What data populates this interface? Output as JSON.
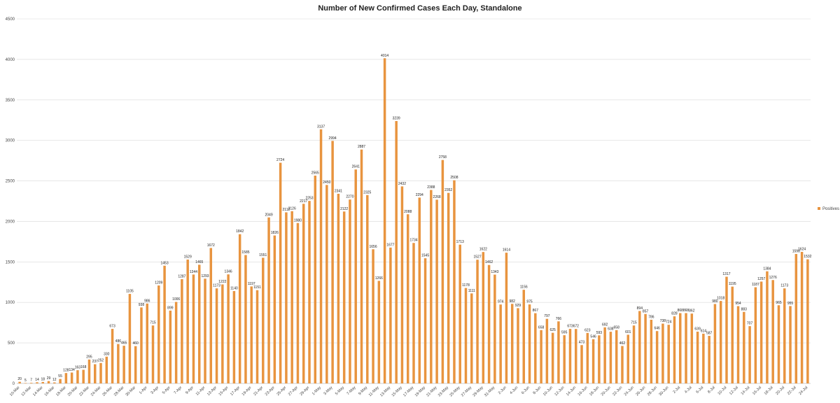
{
  "chart_data": {
    "type": "bar",
    "title": "Number of New Confirmed Cases Each Day, Standalone",
    "xlabel": "",
    "ylabel": "",
    "ylim": [
      0,
      4500
    ],
    "yticks": [
      0,
      500,
      1000,
      1500,
      2000,
      2500,
      3000,
      3500,
      4000,
      4500
    ],
    "grid": true,
    "legend": "right",
    "bar_color": "#e8943f",
    "series": [
      {
        "name": "Positives",
        "values": [
          20,
          5,
          7,
          14,
          18,
          29,
          12,
          55,
          128,
          134,
          163,
          168,
          295,
          237,
          252,
          330,
          673,
          486,
          465,
          1105,
          460,
          938,
          986,
          715,
          1209,
          1453,
          899,
          1006,
          1287,
          1529,
          1344,
          1465,
          1293,
          1672,
          1173,
          1222,
          1346,
          1140,
          1842,
          1585,
          1197,
          1151,
          1551,
          2049,
          1826,
          2724,
          2112,
          2126,
          1980,
          2217,
          2253,
          2565,
          3137,
          2450,
          2994,
          2341,
          2122,
          2270,
          2641,
          2887,
          2325,
          1656,
          1266,
          4014,
          1677,
          3239,
          2432,
          2088,
          1734,
          2294,
          1545,
          2388,
          2268,
          2758,
          2352,
          2508,
          1713,
          1178,
          1111,
          1527,
          1622,
          1462,
          1343,
          974,
          1614,
          982,
          929,
          1156,
          975,
          867,
          658,
          797,
          625,
          766,
          595,
          673,
          672,
          473,
          623,
          546,
          593,
          692,
          638,
          658,
          462,
          601,
          715,
          894,
          857,
          786,
          646,
          738,
          724,
          828,
          868,
          868,
          862,
          639,
          614,
          587,
          980,
          1018,
          1317,
          1195,
          954,
          883,
          707,
          1187,
          1257,
          1384,
          1276,
          965,
          1173,
          955,
          1598,
          1624,
          1532
        ]
      }
    ],
    "x_tick_labels": [
      "10-Mar",
      "12-Mar",
      "14-Mar",
      "16-Mar",
      "18-Mar",
      "20-Mar",
      "22-Mar",
      "24-Mar",
      "26-Mar",
      "28-Mar",
      "30-Mar",
      "1-Apr",
      "3-Apr",
      "5-Apr",
      "7-Apr",
      "9-Apr",
      "11-Apr",
      "13-Apr",
      "15-Apr",
      "17-Apr",
      "19-Apr",
      "21-Apr",
      "23-Apr",
      "25-Apr",
      "27-Apr",
      "29-Apr",
      "1-May",
      "3-May",
      "5-May",
      "7-May",
      "9-May",
      "11-May",
      "13-May",
      "15-May",
      "17-May",
      "19-May",
      "21-May",
      "23-May",
      "25-May",
      "27-May",
      "29-May",
      "31-May",
      "2-Jun",
      "4-Jun",
      "6-Jun",
      "8-Jun",
      "10-Jun",
      "12-Jun",
      "14-Jun",
      "16-Jun",
      "18-Jun",
      "20-Jun",
      "22-Jun",
      "24-Jun",
      "26-Jun",
      "28-Jun",
      "30-Jun",
      "2-Jul",
      "4-Jul",
      "6-Jul",
      "8-Jul",
      "10-Jul",
      "12-Jul",
      "14-Jul",
      "16-Jul",
      "18-Jul",
      "20-Jul",
      "22-Jul",
      "24-Jul"
    ]
  }
}
